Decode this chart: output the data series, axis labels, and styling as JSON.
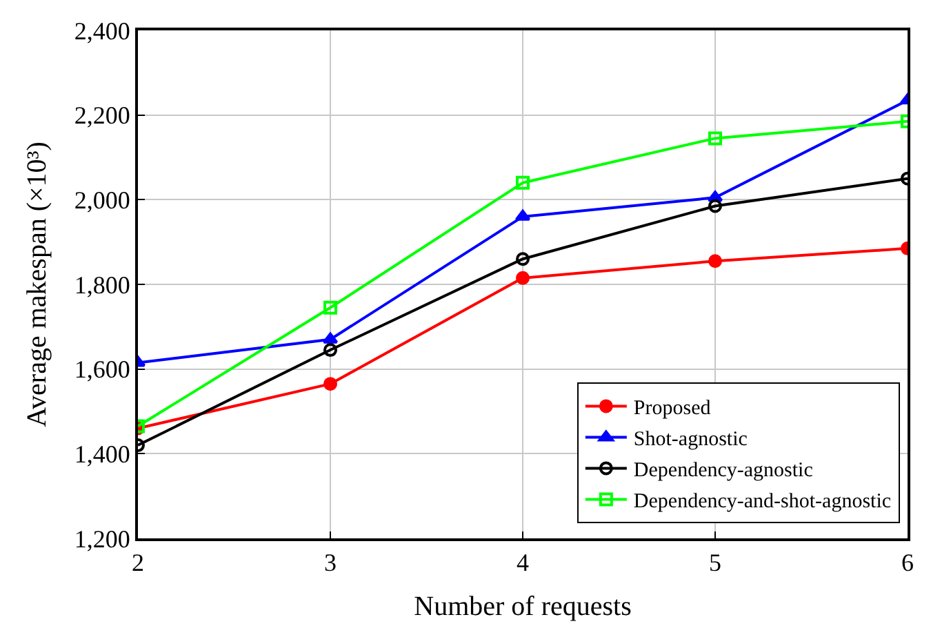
{
  "chart_data": {
    "type": "line",
    "xlabel": "Number of requests",
    "ylabel": "Average makespan (×10³)",
    "x": [
      2,
      3,
      4,
      5,
      6
    ],
    "xlim": [
      2,
      6
    ],
    "xticks": [
      2,
      3,
      4,
      5,
      6
    ],
    "ylim": [
      1200,
      2400
    ],
    "yticks": [
      {
        "value": 1200,
        "label": "1,200"
      },
      {
        "value": 1400,
        "label": "1,400"
      },
      {
        "value": 1600,
        "label": "1,600"
      },
      {
        "value": 1800,
        "label": "1,800"
      },
      {
        "value": 2000,
        "label": "2,000"
      },
      {
        "value": 2200,
        "label": "2,200"
      },
      {
        "value": 2400,
        "label": "2,400"
      }
    ],
    "grid": true,
    "legend": "bottom right",
    "series": [
      {
        "name": "Proposed",
        "color": "#ff0000",
        "marker": "circle",
        "values": [
          1460,
          1565,
          1815,
          1855,
          1885
        ]
      },
      {
        "name": "Shot-agnostic",
        "color": "#0000ff",
        "marker": "triangle",
        "values": [
          1615,
          1670,
          1960,
          2005,
          2235
        ]
      },
      {
        "name": "Dependency-agnostic",
        "color": "#000000",
        "marker": "circle-open",
        "values": [
          1420,
          1645,
          1860,
          1985,
          2050
        ]
      },
      {
        "name": "Dependency-and-shot-agnostic",
        "color": "#00ff00",
        "marker": "square-open",
        "values": [
          1465,
          1745,
          2040,
          2145,
          2185
        ]
      }
    ]
  }
}
